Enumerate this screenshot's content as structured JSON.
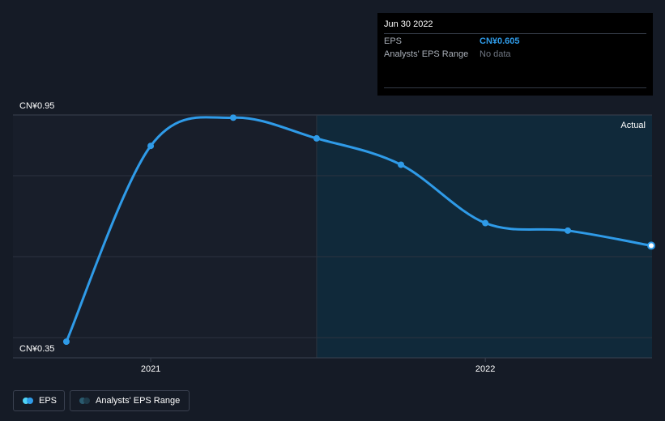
{
  "tooltip": {
    "date": "Jun 30 2022",
    "rows": [
      {
        "label": "EPS",
        "value": "CN¥0.605"
      },
      {
        "label": "Analysts' EPS Range",
        "value": "No data"
      }
    ]
  },
  "legend": {
    "eps_label": "EPS",
    "range_label": "Analysts' EPS Range"
  },
  "colors": {
    "eps_line": "#2f9be8",
    "background": "#151b26",
    "forecast_shade": "#10293a",
    "eps_dot_legend": "#4fd3f5",
    "range_dot_legend": "#2a5a6e"
  },
  "chart_data": {
    "type": "line",
    "y_top_label": "CN¥0.95",
    "y_bottom_label": "CN¥0.35",
    "ylim": [
      0.35,
      0.95
    ],
    "x_ticks": [
      {
        "label": "2021",
        "date": "2020-12-31"
      },
      {
        "label": "2022",
        "date": "2021-12-31"
      }
    ],
    "xlim": [
      "2020-08-31",
      "2022-06-30"
    ],
    "actual_label": "Actual",
    "highlight_from": "2021-06-30",
    "series": [
      {
        "name": "EPS",
        "points": [
          {
            "x": "2020-09-30",
            "y": 0.35
          },
          {
            "x": "2020-12-31",
            "y": 0.87
          },
          {
            "x": "2021-03-31",
            "y": 0.945
          },
          {
            "x": "2021-06-30",
            "y": 0.89
          },
          {
            "x": "2021-09-30",
            "y": 0.82
          },
          {
            "x": "2021-12-31",
            "y": 0.665
          },
          {
            "x": "2022-03-31",
            "y": 0.645
          },
          {
            "x": "2022-06-30",
            "y": 0.605
          }
        ]
      }
    ]
  }
}
